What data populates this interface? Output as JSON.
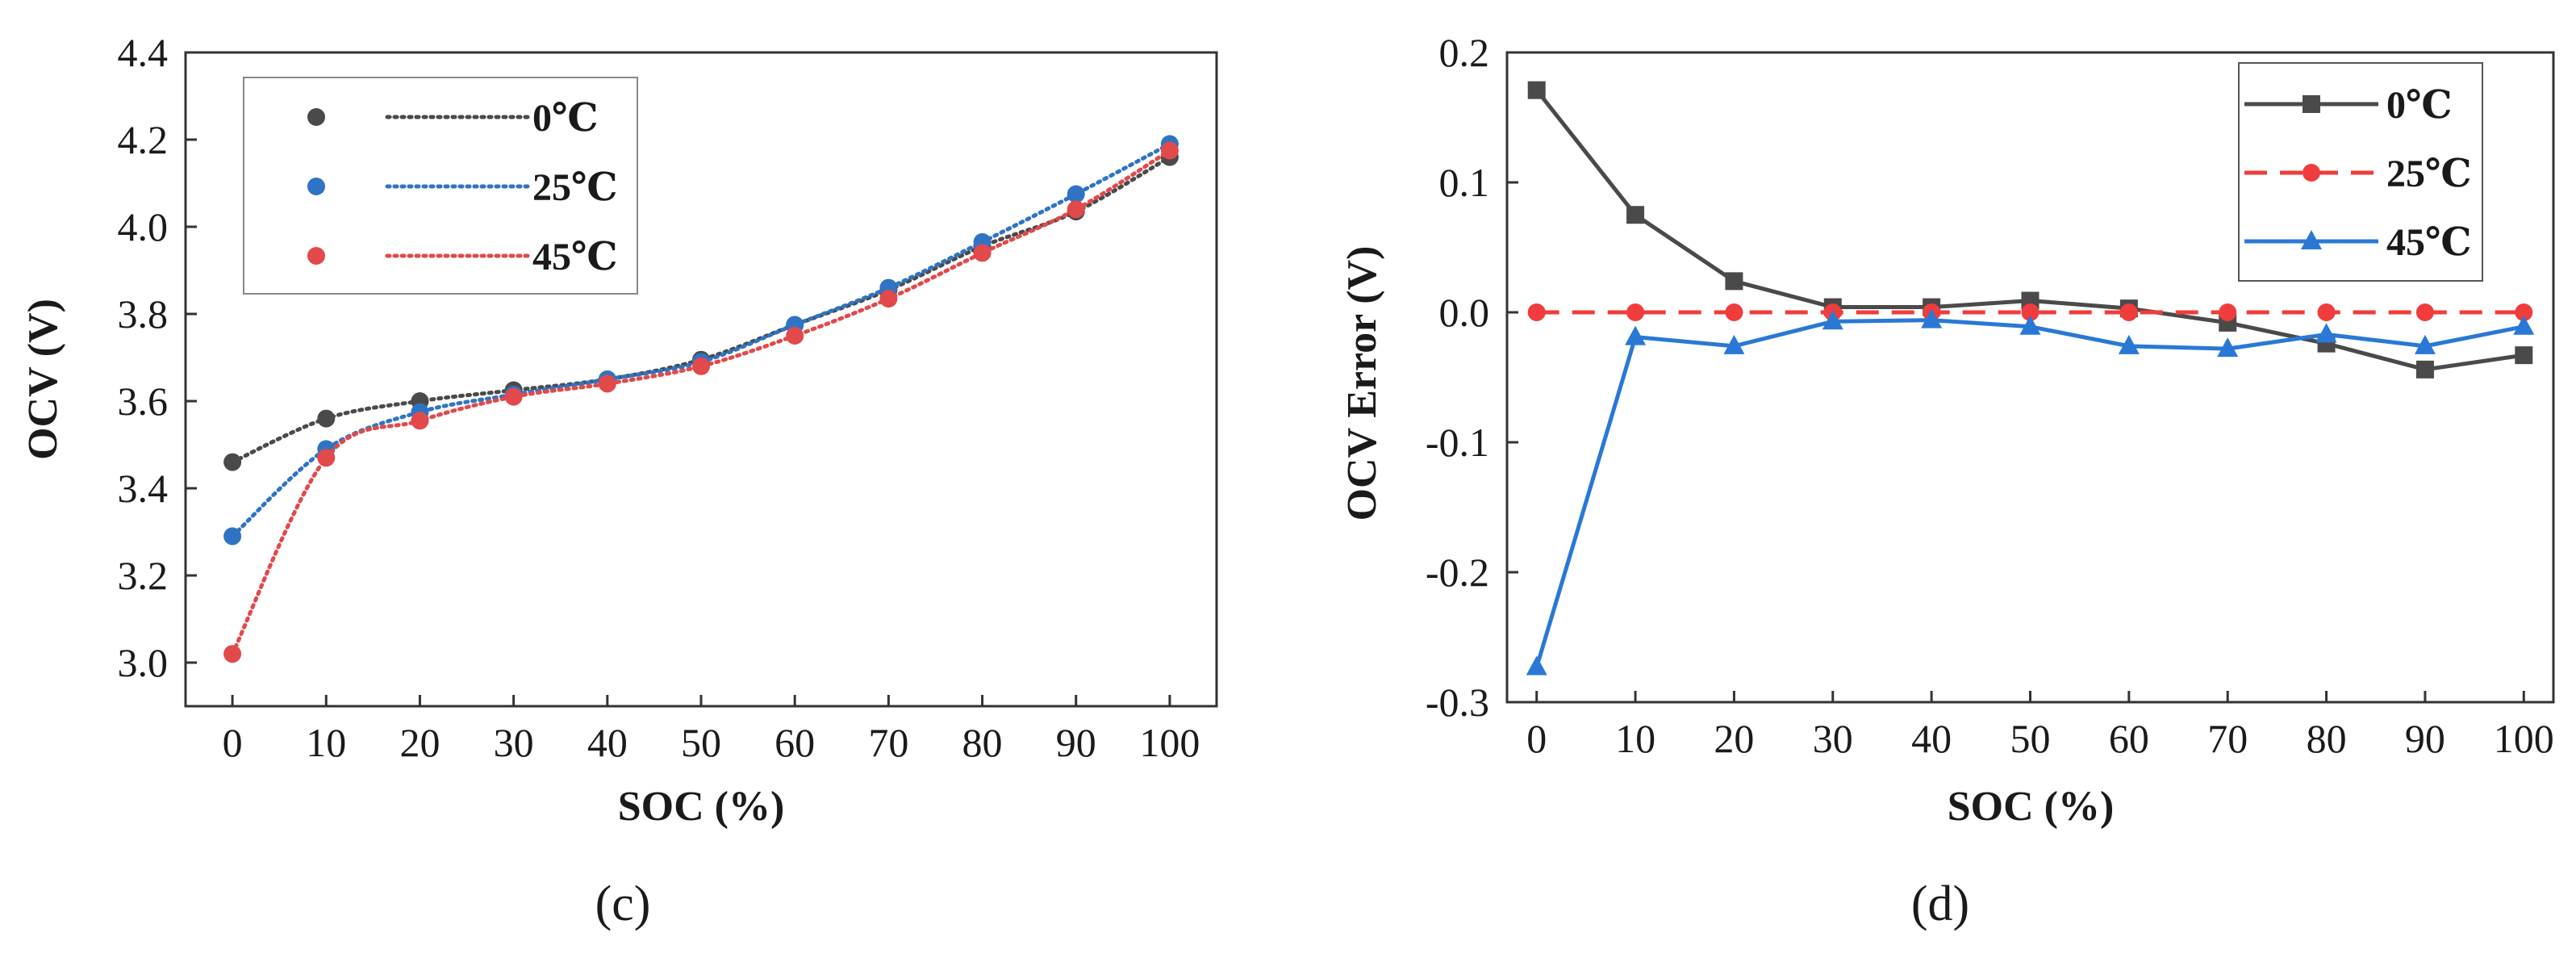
{
  "chart_data": [
    {
      "type": "scatter",
      "panel_label": "(c)",
      "xlabel": "SOC (%)",
      "ylabel": "OCV (V)",
      "xlim": [
        -5,
        105
      ],
      "ylim": [
        2.9,
        4.4
      ],
      "xticks": [
        "0",
        "10",
        "20",
        "30",
        "40",
        "50",
        "60",
        "70",
        "80",
        "90",
        "100"
      ],
      "yticks": [
        "3.0",
        "3.2",
        "3.4",
        "3.6",
        "3.8",
        "4.0",
        "4.2",
        "4.4"
      ],
      "legend_position": "top-left",
      "x": [
        0,
        10,
        20,
        30,
        40,
        50,
        60,
        70,
        80,
        90,
        100
      ],
      "series": [
        {
          "name": "0℃",
          "color": "#4a4a4a",
          "marker": "circle",
          "fit_line": "dotted",
          "values": [
            3.46,
            3.56,
            3.6,
            3.625,
            3.65,
            3.695,
            3.775,
            3.855,
            3.955,
            4.035,
            4.16
          ]
        },
        {
          "name": "25℃",
          "color": "#2f74c4",
          "marker": "circle",
          "fit_line": "dotted",
          "values": [
            3.29,
            3.49,
            3.575,
            3.615,
            3.65,
            3.69,
            3.775,
            3.86,
            3.965,
            4.075,
            4.19
          ]
        },
        {
          "name": "45℃",
          "color": "#e2494b",
          "marker": "circle",
          "fit_line": "dotted",
          "values": [
            3.02,
            3.47,
            3.555,
            3.61,
            3.64,
            3.68,
            3.75,
            3.835,
            3.94,
            4.04,
            4.175
          ]
        }
      ]
    },
    {
      "type": "line",
      "panel_label": "(d)",
      "xlabel": "SOC (%)",
      "ylabel": "OCV Error (V)",
      "xlim": [
        -3,
        103
      ],
      "ylim": [
        -0.3,
        0.2
      ],
      "xticks": [
        "0",
        "10",
        "20",
        "30",
        "40",
        "50",
        "60",
        "70",
        "80",
        "90",
        "100"
      ],
      "yticks": [
        "-0.3",
        "-0.2",
        "-0.1",
        "0.0",
        "0.1",
        "0.2"
      ],
      "legend_position": "top-right",
      "x": [
        0,
        10,
        20,
        30,
        40,
        50,
        60,
        70,
        80,
        90,
        100
      ],
      "series": [
        {
          "name": "0℃",
          "color": "#4a4a4a",
          "marker": "square",
          "line": "solid",
          "values": [
            0.171,
            0.075,
            0.024,
            0.004,
            0.004,
            0.009,
            0.003,
            -0.008,
            -0.024,
            -0.044,
            -0.033
          ]
        },
        {
          "name": "25℃",
          "color": "#f03c3c",
          "marker": "circle",
          "line": "dashed",
          "values": [
            0,
            0,
            0,
            0,
            0,
            0,
            0,
            0,
            0,
            0,
            0
          ]
        },
        {
          "name": "45℃",
          "color": "#2a78d6",
          "marker": "triangle",
          "line": "solid",
          "values": [
            -0.273,
            -0.019,
            -0.026,
            -0.007,
            -0.006,
            -0.011,
            -0.026,
            -0.028,
            -0.017,
            -0.026,
            -0.011
          ]
        }
      ]
    }
  ]
}
